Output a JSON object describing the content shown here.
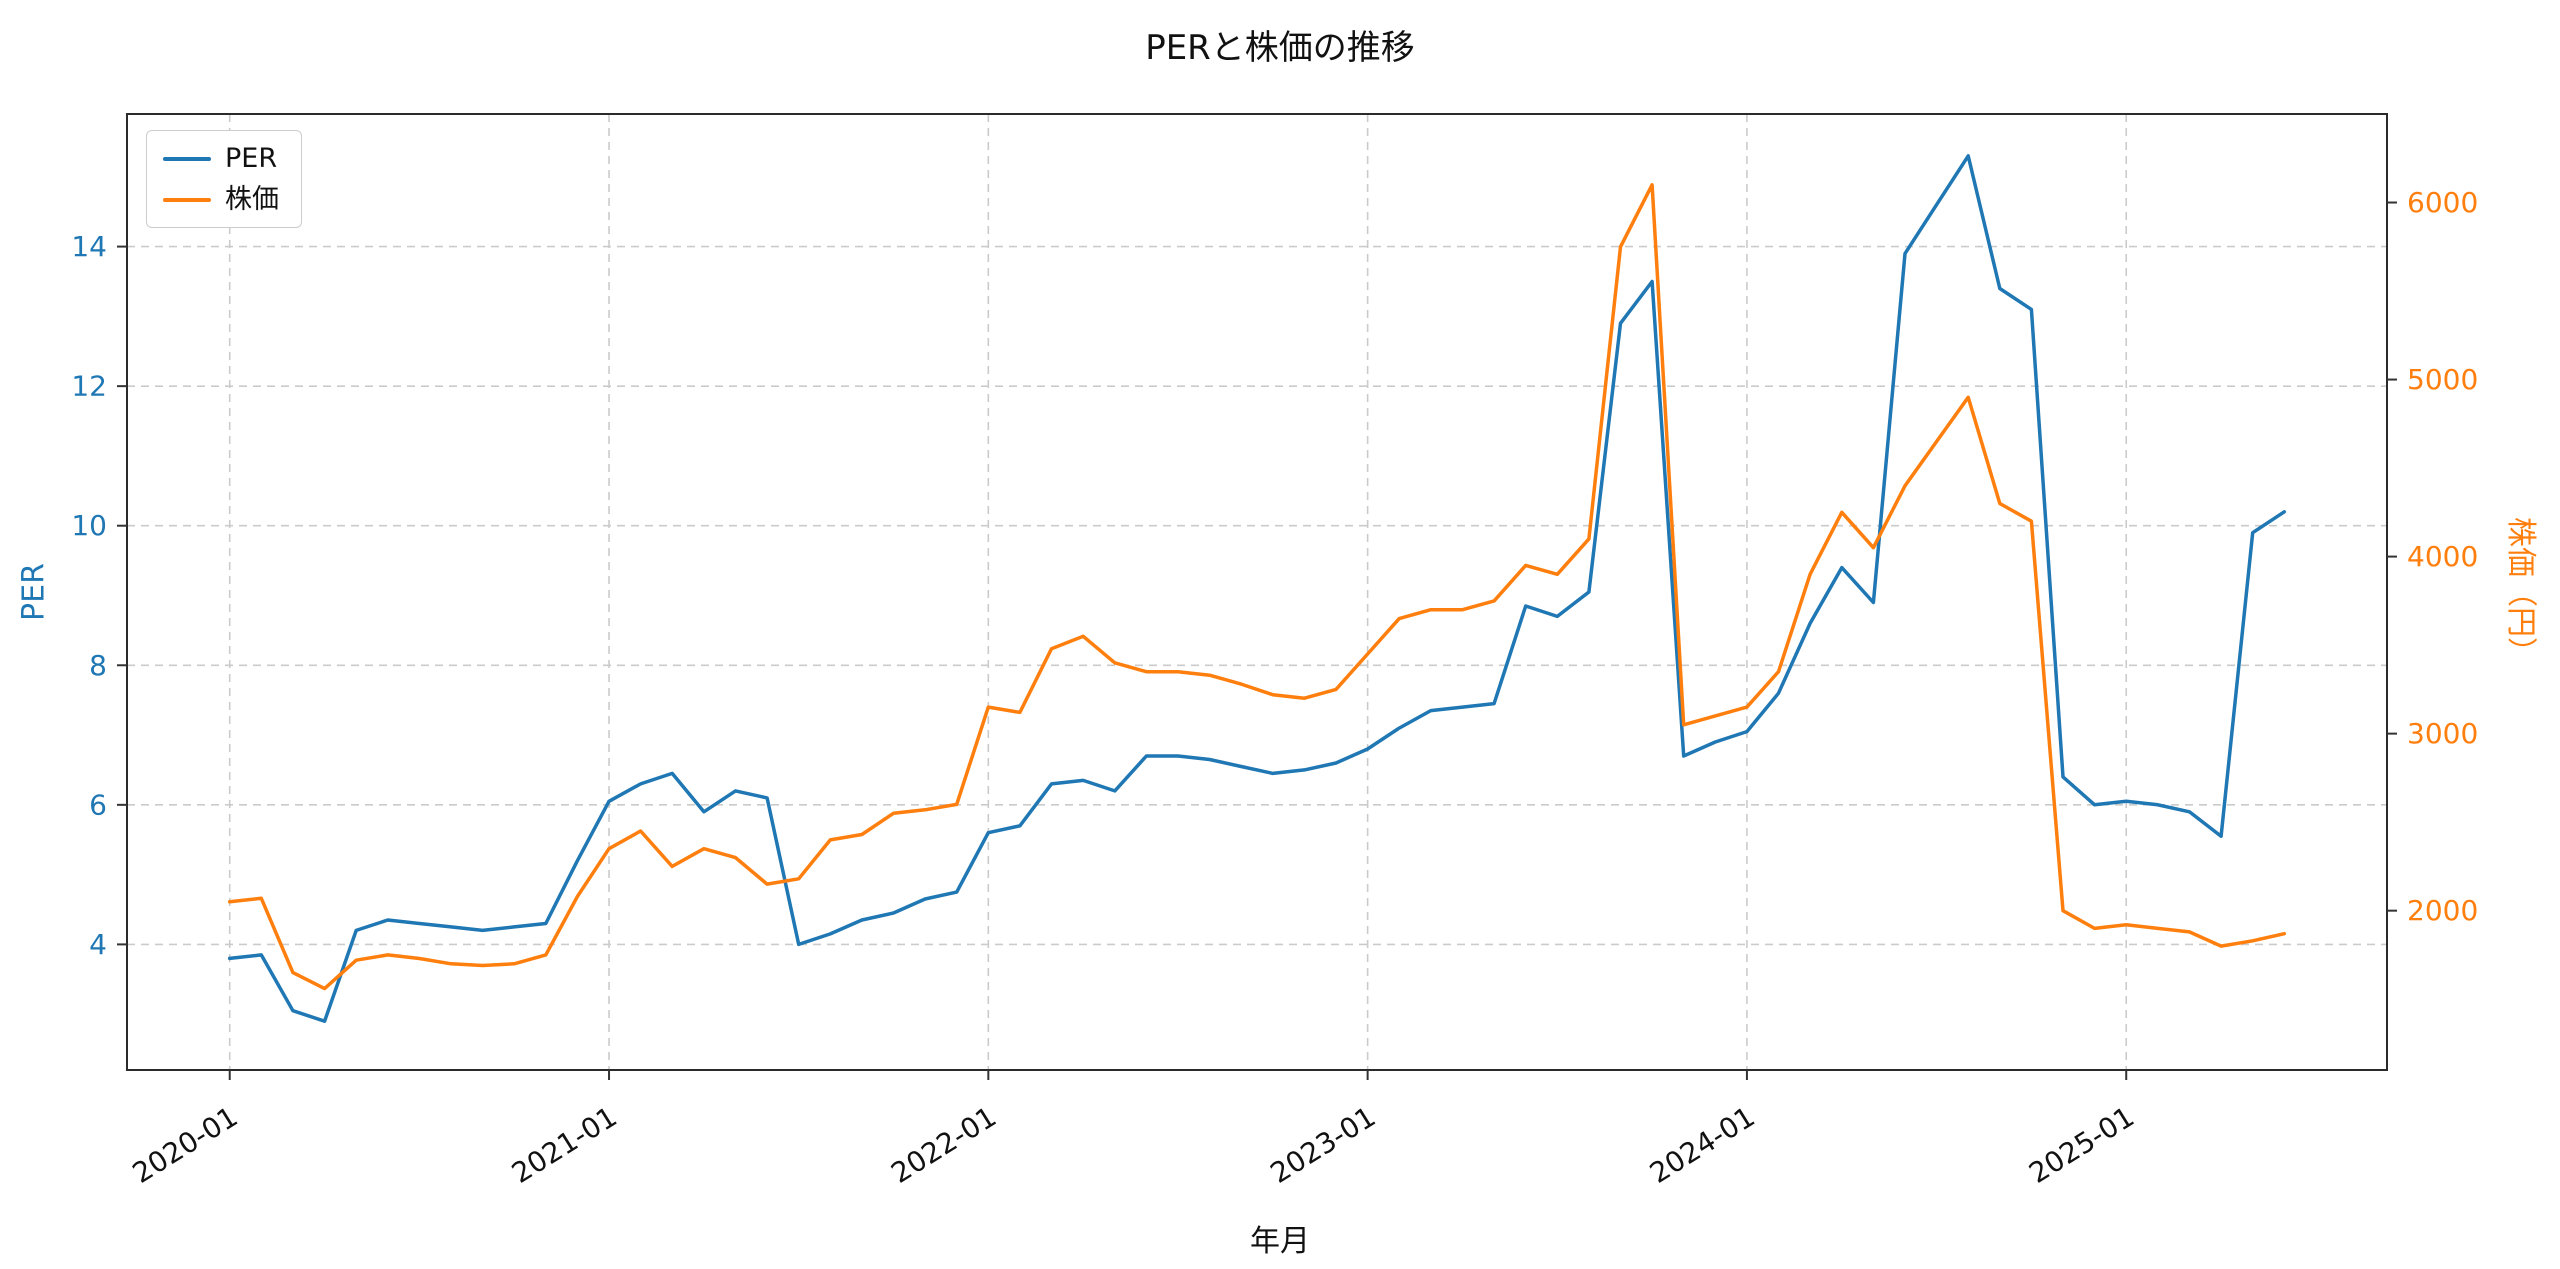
{
  "page": {
    "background": "#ffffff"
  },
  "chart_data": {
    "type": "line",
    "title": "PERと株価の推移",
    "xlabel": "年月",
    "ylabel_left": "PER",
    "ylabel_right": "株価（円）",
    "legend_position": "upper-left",
    "grid": {
      "on": true,
      "style": "dashed",
      "color": "#cbcbcb",
      "dash": "8 6"
    },
    "x": [
      "2020-01",
      "2020-02",
      "2020-03",
      "2020-04",
      "2020-05",
      "2020-06",
      "2020-07",
      "2020-08",
      "2020-09",
      "2020-10",
      "2020-11",
      "2020-12",
      "2021-01",
      "2021-02",
      "2021-03",
      "2021-04",
      "2021-05",
      "2021-06",
      "2021-07",
      "2021-08",
      "2021-09",
      "2021-10",
      "2021-11",
      "2021-12",
      "2022-01",
      "2022-02",
      "2022-03",
      "2022-04",
      "2022-05",
      "2022-06",
      "2022-07",
      "2022-08",
      "2022-09",
      "2022-10",
      "2022-11",
      "2022-12",
      "2023-01",
      "2023-02",
      "2023-03",
      "2023-04",
      "2023-05",
      "2023-06",
      "2023-07",
      "2023-08",
      "2023-09",
      "2023-10",
      "2023-11",
      "2023-12",
      "2024-01",
      "2024-02",
      "2024-03",
      "2024-04",
      "2024-05",
      "2024-06",
      "2024-07",
      "2024-08",
      "2024-09",
      "2024-10",
      "2024-11",
      "2024-12",
      "2025-01",
      "2025-02",
      "2025-03",
      "2025-04",
      "2025-05",
      "2025-06"
    ],
    "x_tick_positions": [
      0,
      12,
      24,
      36,
      48,
      60
    ],
    "x_tick_labels": [
      "2020-01",
      "2021-01",
      "2022-01",
      "2023-01",
      "2024-01",
      "2025-01"
    ],
    "left_ticks": [
      4,
      6,
      8,
      10,
      12,
      14
    ],
    "right_ticks": [
      2000,
      3000,
      4000,
      5000,
      6000
    ],
    "left_ylim": [
      2.2,
      15.9
    ],
    "right_ylim": [
      1100,
      6500
    ],
    "xlim": [
      -3.25,
      68.25
    ],
    "series": [
      {
        "name": "PER",
        "axis": "left",
        "color": "#1f77b4",
        "values": [
          3.8,
          3.85,
          3.05,
          2.9,
          4.2,
          4.35,
          4.3,
          4.25,
          4.2,
          4.25,
          4.3,
          5.2,
          6.05,
          6.3,
          6.45,
          5.9,
          6.2,
          6.1,
          4.0,
          4.15,
          4.35,
          4.45,
          4.65,
          4.75,
          5.6,
          5.7,
          6.3,
          6.35,
          6.2,
          6.7,
          6.7,
          6.65,
          6.55,
          6.45,
          6.5,
          6.6,
          6.8,
          7.1,
          7.35,
          7.4,
          7.45,
          8.85,
          8.7,
          9.05,
          12.9,
          13.5,
          6.7,
          6.9,
          7.05,
          7.6,
          8.6,
          9.4,
          8.9,
          13.9,
          14.6,
          15.3,
          13.4,
          13.1,
          6.4,
          6.0,
          6.05,
          6.0,
          5.9,
          5.55,
          9.9,
          10.2
        ]
      },
      {
        "name": "株価",
        "axis": "right",
        "color": "#ff7f0e",
        "values": [
          2050,
          2070,
          1650,
          1560,
          1720,
          1750,
          1730,
          1700,
          1690,
          1700,
          1750,
          2080,
          2350,
          2450,
          2250,
          2350,
          2300,
          2150,
          2180,
          2400,
          2430,
          2550,
          2570,
          2600,
          3150,
          3120,
          3480,
          3550,
          3400,
          3350,
          3350,
          3330,
          3280,
          3220,
          3200,
          3250,
          3450,
          3650,
          3700,
          3700,
          3750,
          3950,
          3900,
          4100,
          5750,
          6100,
          3050,
          3100,
          3150,
          3350,
          3900,
          4250,
          4050,
          4400,
          4650,
          4900,
          4300,
          4200,
          2000,
          1900,
          1920,
          1900,
          1880,
          1800,
          1830,
          1870
        ]
      }
    ]
  }
}
